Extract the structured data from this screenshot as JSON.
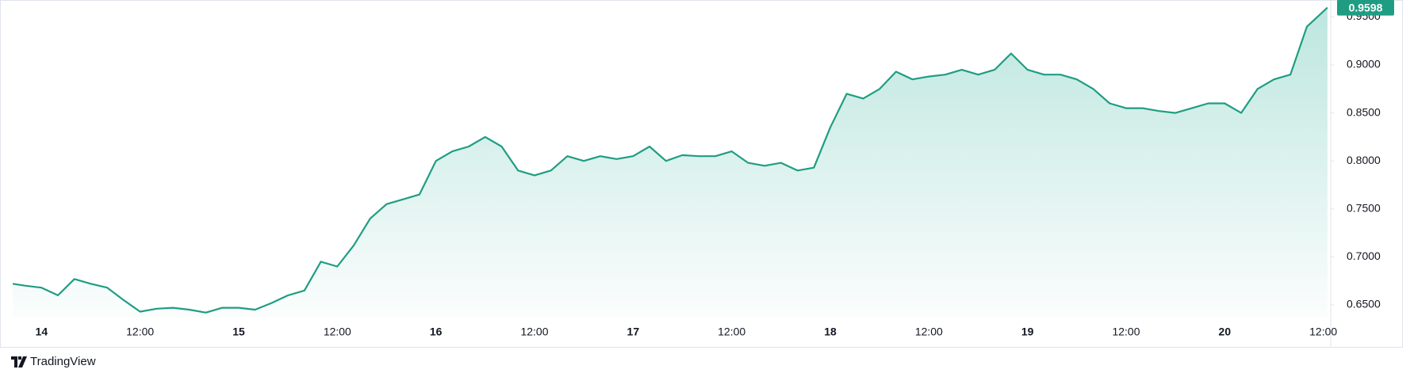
{
  "chart_data": {
    "type": "line",
    "x": [
      -3.5,
      -2,
      0,
      2,
      4,
      6,
      8,
      10,
      12,
      14,
      16,
      18,
      20,
      22,
      24,
      26,
      28,
      30,
      32,
      34,
      36,
      38,
      40,
      42,
      44,
      46,
      48,
      50,
      52,
      54,
      56,
      58,
      60,
      62,
      64,
      66,
      68,
      70,
      72,
      74,
      76,
      78,
      80,
      82,
      84,
      86,
      88,
      90,
      92,
      94,
      96,
      98,
      100,
      102,
      104,
      106,
      108,
      110,
      112,
      114,
      116,
      118,
      120,
      122,
      124,
      126,
      128,
      130,
      132,
      134,
      136,
      138,
      140,
      142,
      144,
      146,
      148,
      150,
      152,
      154,
      156.5
    ],
    "series": [
      {
        "color": "#1f9d83",
        "values": [
          0.672,
          0.67,
          0.668,
          0.66,
          0.677,
          0.672,
          0.668,
          0.655,
          0.643,
          0.646,
          0.647,
          0.645,
          0.642,
          0.647,
          0.647,
          0.645,
          0.652,
          0.66,
          0.665,
          0.695,
          0.69,
          0.712,
          0.74,
          0.755,
          0.76,
          0.765,
          0.8,
          0.81,
          0.815,
          0.825,
          0.815,
          0.79,
          0.785,
          0.79,
          0.805,
          0.8,
          0.805,
          0.802,
          0.805,
          0.815,
          0.8,
          0.806,
          0.805,
          0.805,
          0.81,
          0.798,
          0.795,
          0.798,
          0.79,
          0.793,
          0.835,
          0.87,
          0.865,
          0.875,
          0.893,
          0.885,
          0.888,
          0.89,
          0.895,
          0.89,
          0.895,
          0.912,
          0.895,
          0.89,
          0.89,
          0.885,
          0.875,
          0.86,
          0.855,
          0.855,
          0.852,
          0.85,
          0.855,
          0.86,
          0.86,
          0.85,
          0.875,
          0.885,
          0.89,
          0.94,
          0.9598
        ]
      }
    ],
    "xlim": [
      -3.7,
      156.9
    ],
    "xticks": [
      {
        "value": 0,
        "label": "14"
      },
      {
        "value": 12,
        "label": "12:00"
      },
      {
        "value": 24,
        "label": "15"
      },
      {
        "value": 36,
        "label": "12:00"
      },
      {
        "value": 48,
        "label": "16"
      },
      {
        "value": 60,
        "label": "12:00"
      },
      {
        "value": 72,
        "label": "17"
      },
      {
        "value": 84,
        "label": "12:00"
      },
      {
        "value": 96,
        "label": "18"
      },
      {
        "value": 108,
        "label": "12:00"
      },
      {
        "value": 120,
        "label": "19"
      },
      {
        "value": 132,
        "label": "12:00"
      },
      {
        "value": 144,
        "label": "20"
      },
      {
        "value": 156,
        "label": "12:00"
      }
    ],
    "ylim": [
      0.6376,
      0.9644
    ],
    "yticks": [
      {
        "value": 0.65,
        "label": "0.6500"
      },
      {
        "value": 0.7,
        "label": "0.7000"
      },
      {
        "value": 0.75,
        "label": "0.7500"
      },
      {
        "value": 0.8,
        "label": "0.8000"
      },
      {
        "value": 0.85,
        "label": "0.8500"
      },
      {
        "value": 0.9,
        "label": "0.9000"
      },
      {
        "value": 0.95,
        "label": "0.9500"
      }
    ],
    "grid": false,
    "branding": "TradingView"
  }
}
